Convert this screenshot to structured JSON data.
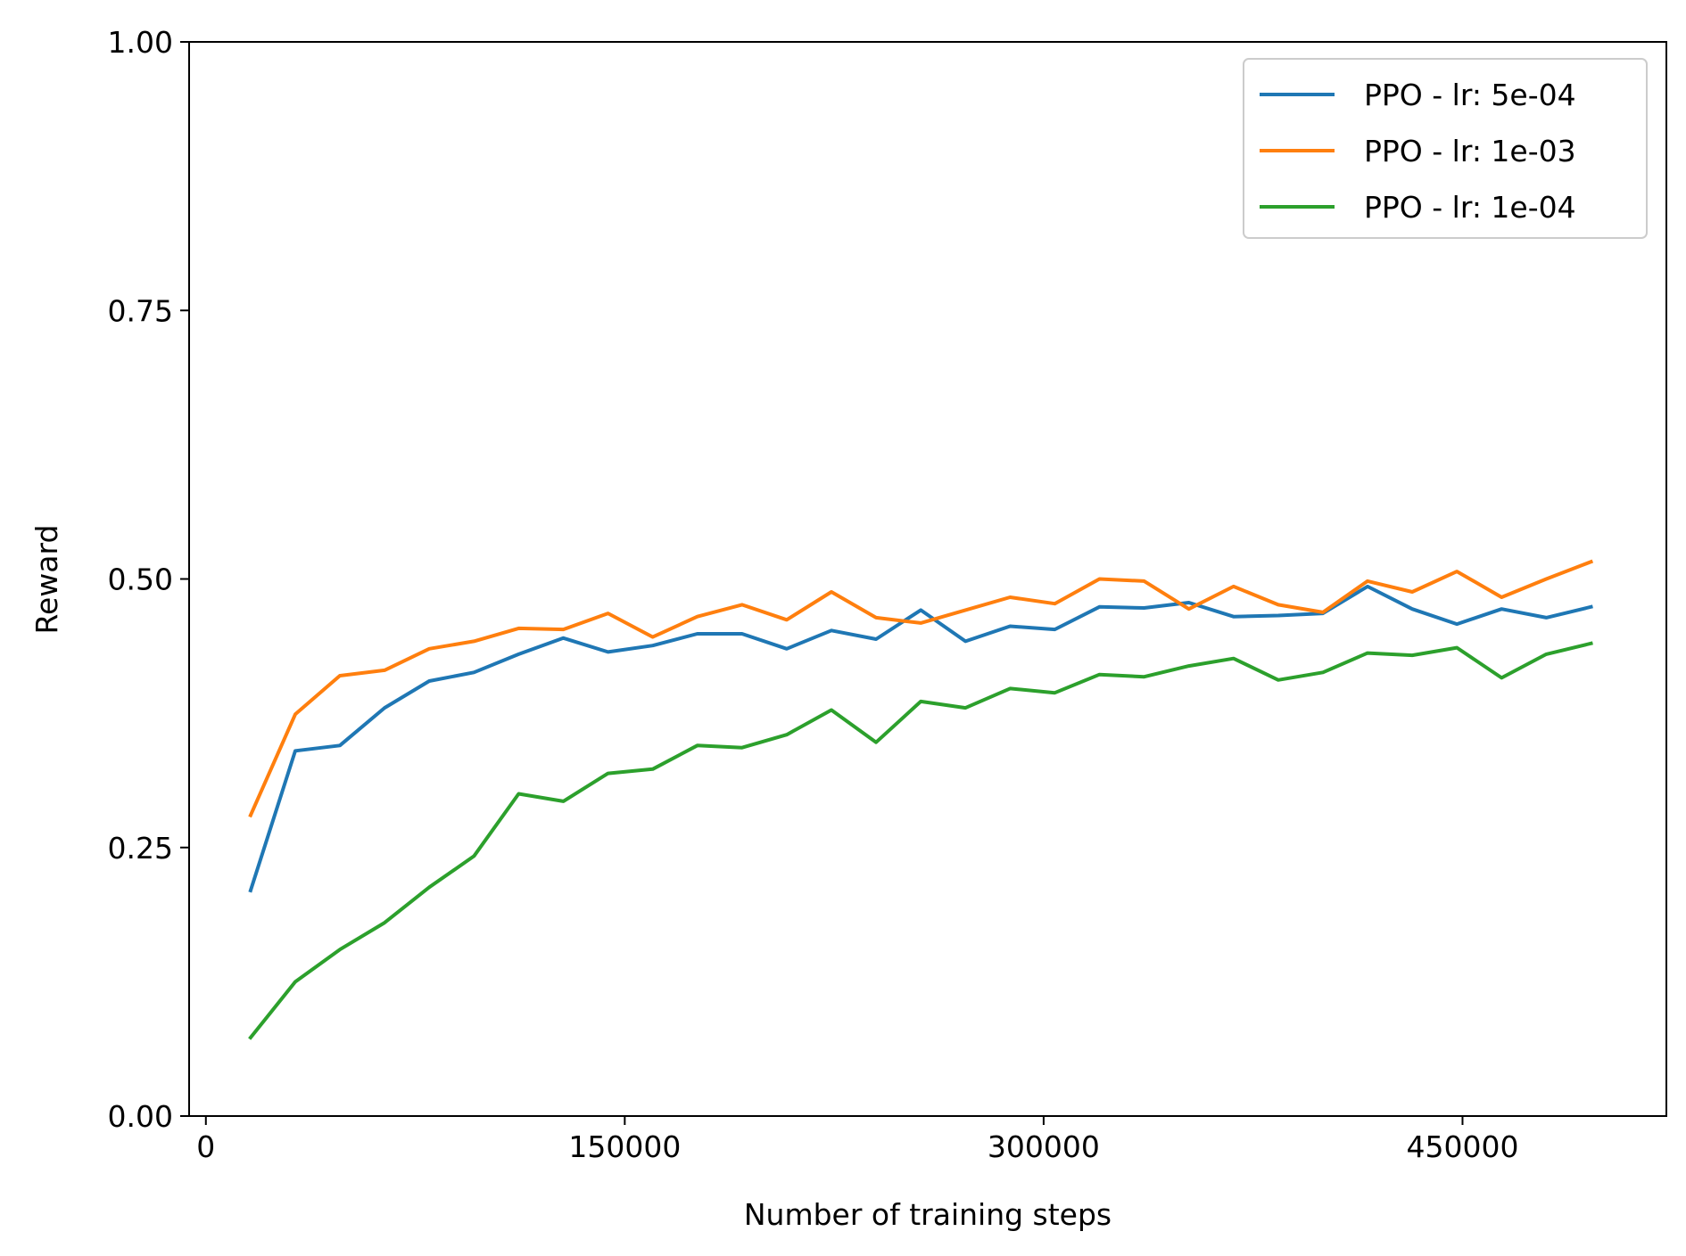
{
  "chart_data": {
    "type": "line",
    "title": "",
    "xlabel": "Number of training steps",
    "ylabel": "Reward",
    "xlim": [
      -6000,
      523000
    ],
    "ylim": [
      0,
      1
    ],
    "xticks": [
      0,
      150000,
      300000,
      450000
    ],
    "xtick_labels": [
      "0",
      "150000",
      "300000",
      "450000"
    ],
    "yticks": [
      0,
      0.25,
      0.5,
      0.75,
      1.0
    ],
    "ytick_labels": [
      "0.00",
      "0.25",
      "0.50",
      "0.75",
      "1.00"
    ],
    "grid": false,
    "legend_position": "top-right",
    "x": [
      16000,
      32000,
      48000,
      64000,
      80000,
      96000,
      112000,
      128000,
      144000,
      160000,
      176000,
      192000,
      208000,
      224000,
      240000,
      256000,
      272000,
      288000,
      304000,
      320000,
      336000,
      352000,
      368000,
      384000,
      400000,
      416000,
      432000,
      448000,
      464000,
      480000,
      496000
    ],
    "series": [
      {
        "name": "PPO - lr: 5e-04",
        "color": "#1f77b4",
        "values": [
          0.21,
          0.34,
          0.345,
          0.38,
          0.405,
          0.413,
          0.43,
          0.445,
          0.432,
          0.438,
          0.449,
          0.449,
          0.435,
          0.452,
          0.444,
          0.471,
          0.442,
          0.456,
          0.453,
          0.474,
          0.473,
          0.478,
          0.465,
          0.466,
          0.468,
          0.493,
          0.472,
          0.458,
          0.472,
          0.464,
          0.474
        ]
      },
      {
        "name": "PPO - lr: 1e-03",
        "color": "#ff7f0e",
        "values": [
          0.28,
          0.374,
          0.41,
          0.415,
          0.435,
          0.442,
          0.454,
          0.453,
          0.468,
          0.446,
          0.465,
          0.476,
          0.462,
          0.488,
          0.464,
          0.459,
          0.471,
          0.483,
          0.477,
          0.5,
          0.498,
          0.472,
          0.493,
          0.476,
          0.469,
          0.498,
          0.488,
          0.507,
          0.483,
          0.5,
          0.516
        ]
      },
      {
        "name": "PPO - lr: 1e-04",
        "color": "#2ca02c",
        "values": [
          0.073,
          0.125,
          0.155,
          0.18,
          0.213,
          0.242,
          0.3,
          0.293,
          0.319,
          0.323,
          0.345,
          0.343,
          0.355,
          0.378,
          0.348,
          0.386,
          0.38,
          0.398,
          0.394,
          0.411,
          0.409,
          0.419,
          0.426,
          0.406,
          0.413,
          0.431,
          0.429,
          0.436,
          0.408,
          0.43,
          0.44
        ]
      }
    ]
  }
}
